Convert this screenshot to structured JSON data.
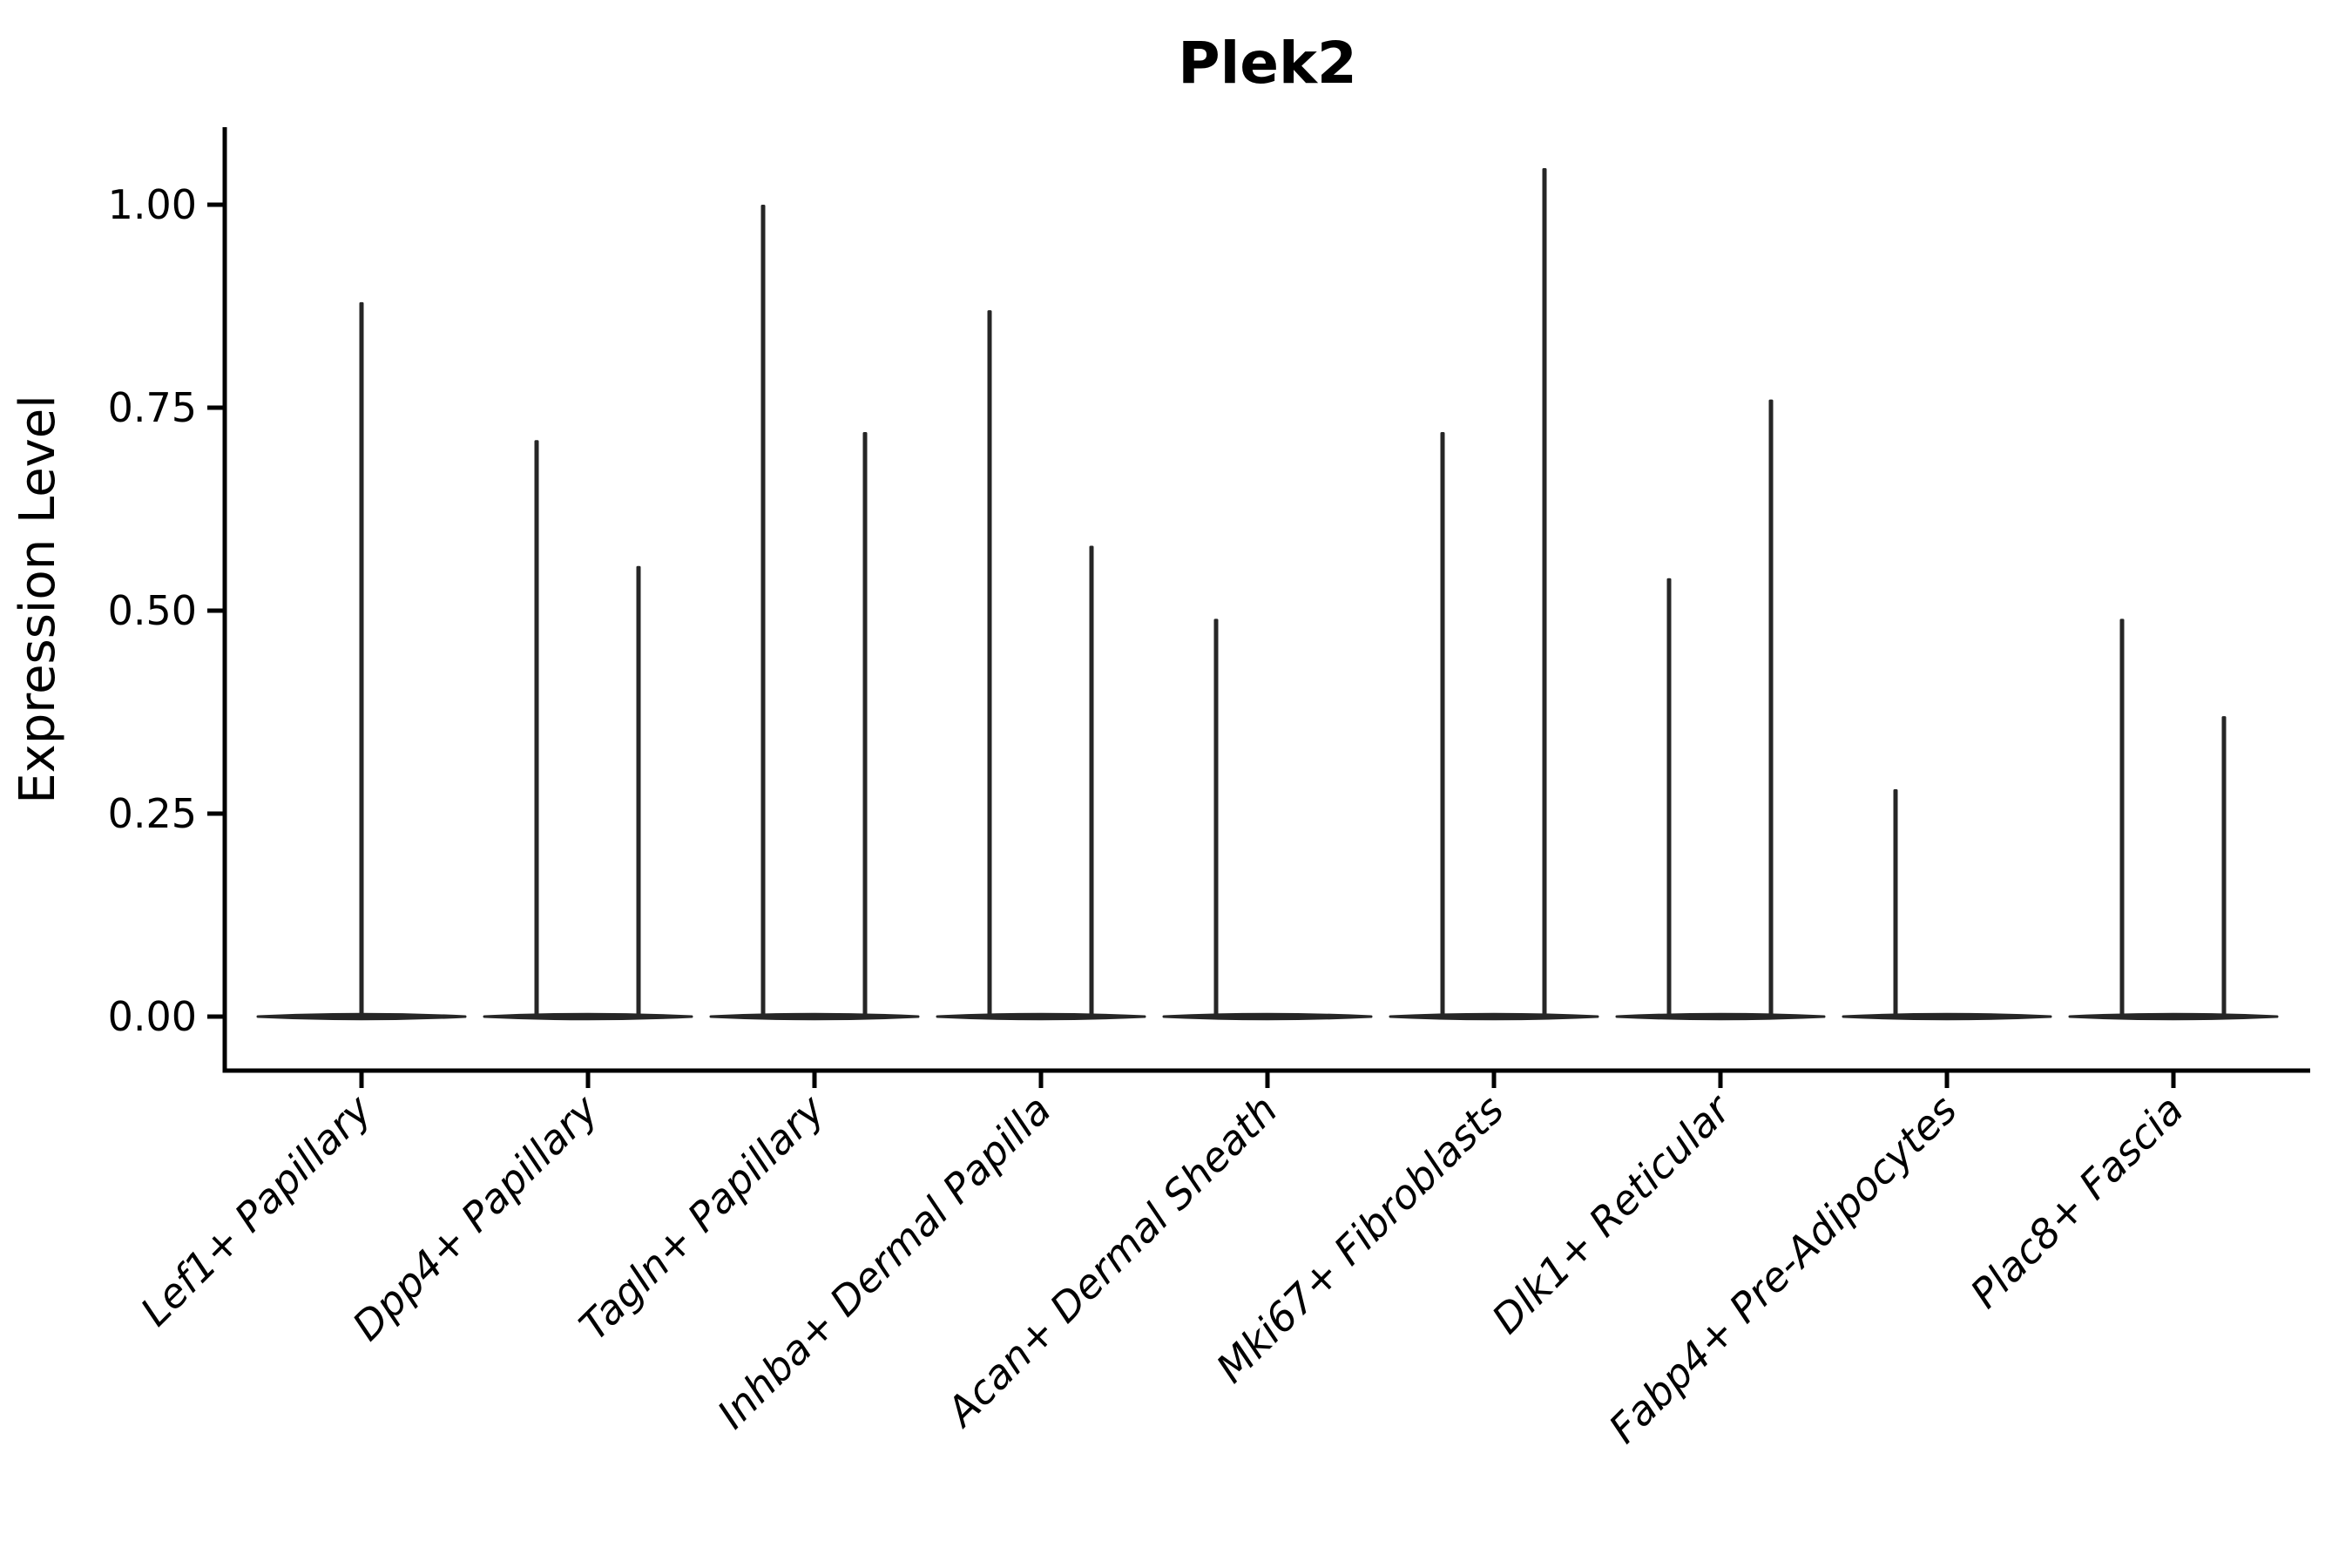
{
  "figure": {
    "title": "Plek2",
    "background_color": "#ffffff",
    "text_color": "#000000",
    "mark_color": "#262626"
  },
  "chart_data": {
    "type": "violin",
    "title": "Plek2",
    "xlabel": "",
    "ylabel": "Expression Level",
    "ylim": [
      0,
      1.09
    ],
    "yticks": [
      0.0,
      0.25,
      0.5,
      0.75,
      1.0
    ],
    "ytick_labels": [
      "0.00",
      "0.25",
      "0.50",
      "0.75",
      "1.00"
    ],
    "grid": false,
    "legend": "none",
    "xtick_rotation": 45,
    "baseline_value": 0.0,
    "categories": [
      "Lef1+ Papillary",
      "Dpp4+ Papillary",
      "Tagln+ Papillary",
      "Inhba+ Dermal Papilla",
      "Acan+ Dermal Sheath",
      "Mki67+ Fibroblasts",
      "Dlk1+ Reticular",
      "Fabp4+ Pre-Adipocytes",
      "Plac8+ Fascia"
    ],
    "violins": [
      {
        "category": "Lef1+ Papillary",
        "spikes": [
          {
            "position": "center",
            "max": 0.88
          }
        ]
      },
      {
        "category": "Dpp4+ Papillary",
        "spikes": [
          {
            "position": "left",
            "max": 0.71
          },
          {
            "position": "right",
            "max": 0.555
          }
        ]
      },
      {
        "category": "Tagln+ Papillary",
        "spikes": [
          {
            "position": "left",
            "max": 1.0
          },
          {
            "position": "right",
            "max": 0.72
          }
        ]
      },
      {
        "category": "Inhba+ Dermal Papilla",
        "spikes": [
          {
            "position": "left",
            "max": 0.87
          },
          {
            "position": "right",
            "max": 0.58
          }
        ]
      },
      {
        "category": "Acan+ Dermal Sheath",
        "spikes": [
          {
            "position": "left",
            "max": 0.49
          }
        ]
      },
      {
        "category": "Mki67+ Fibroblasts",
        "spikes": [
          {
            "position": "left",
            "max": 0.72
          },
          {
            "position": "right",
            "max": 1.045
          }
        ]
      },
      {
        "category": "Dlk1+ Reticular",
        "spikes": [
          {
            "position": "left",
            "max": 0.54
          },
          {
            "position": "right",
            "max": 0.76
          }
        ]
      },
      {
        "category": "Fabp4+ Pre-Adipocytes",
        "spikes": [
          {
            "position": "left",
            "max": 0.28
          }
        ]
      },
      {
        "category": "Plac8+ Fascia",
        "spikes": [
          {
            "position": "left",
            "max": 0.49
          },
          {
            "position": "right",
            "max": 0.37
          }
        ]
      }
    ]
  }
}
